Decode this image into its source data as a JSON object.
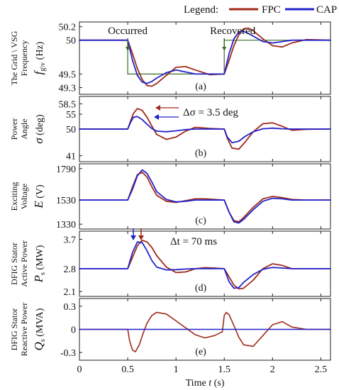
{
  "legend": {
    "title": "Legend:",
    "items": [
      {
        "name": "FPC",
        "color": "#a02a1a"
      },
      {
        "name": "CAP",
        "color": "#2222cc"
      }
    ]
  },
  "annotations": {
    "occurred": "Occurred",
    "recovered": "Recovered",
    "delta_sigma": "Δσ = 3.5 deg",
    "delta_t": "Δt = 70 ms"
  },
  "xaxis": {
    "label_prefix": "Time ",
    "label_sym": "t",
    "label_unit": " (s)",
    "ticks": [
      "0",
      "0.5",
      "1",
      "1.5",
      "2",
      "2.5"
    ]
  },
  "chart_data": [
    {
      "type": "line",
      "panel": "(a)",
      "ylabel_lines": [
        "The Grid \\ VSG",
        "Frequency"
      ],
      "ylabel_symbol": "f",
      "ylabel_sub": "g\\v",
      "ylabel_unit": "(Hz)",
      "ylim": [
        49.2,
        50.27
      ],
      "yticks": [
        "50.2",
        "50",
        "49.5",
        "49.3"
      ],
      "ytick_values": [
        50.2,
        50,
        49.5,
        49.3
      ],
      "reference": {
        "name": "Grid",
        "color": "#3a6a28",
        "x": [
          0,
          0.5,
          0.5,
          1.5,
          1.5,
          2.6
        ],
        "y": [
          50,
          50,
          49.5,
          49.5,
          50,
          50
        ]
      },
      "series": [
        {
          "name": "FPC",
          "x": [
            0,
            0.5,
            0.55,
            0.6,
            0.65,
            0.7,
            0.75,
            0.8,
            0.9,
            1.0,
            1.1,
            1.2,
            1.35,
            1.5,
            1.55,
            1.6,
            1.65,
            1.7,
            1.75,
            1.8,
            1.9,
            2.0,
            2.1,
            2.2,
            2.35,
            2.6
          ],
          "y": [
            50,
            50,
            49.8,
            49.58,
            49.42,
            49.33,
            49.32,
            49.36,
            49.48,
            49.6,
            49.61,
            49.56,
            49.49,
            49.5,
            49.7,
            49.92,
            50.08,
            50.17,
            50.18,
            50.14,
            50.02,
            49.92,
            49.9,
            49.96,
            50.01,
            50
          ]
        },
        {
          "name": "CAP",
          "x": [
            0,
            0.5,
            0.55,
            0.6,
            0.65,
            0.7,
            0.75,
            0.8,
            0.9,
            1.0,
            1.1,
            1.2,
            1.35,
            1.5,
            1.55,
            1.6,
            1.65,
            1.7,
            1.75,
            1.8,
            1.9,
            2.0,
            2.1,
            2.2,
            2.35,
            2.6
          ],
          "y": [
            50,
            50,
            49.7,
            49.48,
            49.38,
            49.36,
            49.39,
            49.44,
            49.52,
            49.56,
            49.53,
            49.5,
            49.5,
            49.5,
            49.8,
            50.02,
            50.12,
            50.13,
            50.1,
            50.06,
            49.98,
            49.96,
            49.98,
            50,
            50,
            50
          ]
        }
      ]
    },
    {
      "type": "line",
      "panel": "(b)",
      "ylabel_lines": [
        "Power",
        "Angle"
      ],
      "ylabel_symbol": "σ",
      "ylabel_sub": "",
      "ylabel_unit": "(deg)",
      "ylim": [
        39,
        61
      ],
      "yticks": [
        "58.5",
        "55",
        "50",
        "41"
      ],
      "ytick_values": [
        58.5,
        55,
        50,
        41
      ],
      "series": [
        {
          "name": "FPC",
          "x": [
            0,
            0.5,
            0.53,
            0.56,
            0.6,
            0.65,
            0.7,
            0.75,
            0.8,
            0.9,
            1.0,
            1.1,
            1.2,
            1.35,
            1.5,
            1.53,
            1.58,
            1.65,
            1.72,
            1.8,
            1.9,
            2.0,
            2.1,
            2.2,
            2.35,
            2.6
          ],
          "y": [
            50,
            50,
            52.8,
            55.3,
            56.9,
            56.3,
            54,
            51,
            48.2,
            46.5,
            47.3,
            49.3,
            50.6,
            50.2,
            50,
            47,
            43.6,
            43.2,
            45.8,
            49.1,
            51.8,
            52.1,
            50.9,
            49.6,
            49.9,
            50
          ]
        },
        {
          "name": "CAP",
          "x": [
            0,
            0.5,
            0.53,
            0.56,
            0.6,
            0.65,
            0.7,
            0.75,
            0.8,
            0.9,
            1.0,
            1.1,
            1.2,
            1.35,
            1.5,
            1.53,
            1.58,
            1.65,
            1.72,
            1.8,
            1.9,
            2.0,
            2.1,
            2.2,
            2.35,
            2.6
          ],
          "y": [
            50,
            50,
            52.3,
            54,
            54.2,
            53.2,
            51.6,
            50.2,
            49.3,
            49.1,
            49.4,
            49.8,
            50,
            50,
            50,
            47.4,
            45.4,
            45.9,
            47.6,
            49.1,
            50.1,
            50.3,
            50.1,
            50,
            50,
            50
          ]
        }
      ]
    },
    {
      "type": "line",
      "panel": "(c)",
      "ylabel_lines": [
        "Exciting",
        "Voltage"
      ],
      "ylabel_symbol": "E",
      "ylabel_sub": "",
      "ylabel_unit": "(V)",
      "ylim": [
        1290,
        1830
      ],
      "yticks": [
        "1790",
        "1530",
        "1330"
      ],
      "ytick_values": [
        1790,
        1530,
        1330
      ],
      "series": [
        {
          "name": "FPC",
          "x": [
            0,
            0.5,
            0.55,
            0.6,
            0.65,
            0.7,
            0.75,
            0.8,
            0.9,
            1.0,
            1.1,
            1.2,
            1.3,
            1.4,
            1.5,
            1.55,
            1.6,
            1.65,
            1.7,
            1.8,
            1.9,
            2.0,
            2.1,
            2.2,
            2.35,
            2.6
          ],
          "y": [
            1530,
            1530,
            1640,
            1740,
            1760,
            1720,
            1640,
            1570,
            1520,
            1510,
            1525,
            1540,
            1540,
            1535,
            1530,
            1430,
            1360,
            1350,
            1385,
            1470,
            1540,
            1560,
            1550,
            1535,
            1530,
            1530
          ]
        },
        {
          "name": "CAP",
          "x": [
            0,
            0.5,
            0.55,
            0.6,
            0.65,
            0.7,
            0.75,
            0.8,
            0.9,
            1.0,
            1.1,
            1.2,
            1.3,
            1.4,
            1.5,
            1.55,
            1.6,
            1.65,
            1.7,
            1.8,
            1.9,
            2.0,
            2.1,
            2.2,
            2.35,
            2.6
          ],
          "y": [
            1530,
            1530,
            1620,
            1730,
            1780,
            1750,
            1680,
            1600,
            1535,
            1515,
            1520,
            1530,
            1530,
            1530,
            1530,
            1430,
            1350,
            1340,
            1370,
            1450,
            1520,
            1545,
            1540,
            1530,
            1530,
            1530
          ]
        }
      ]
    },
    {
      "type": "line",
      "panel": "(d)",
      "ylabel_lines": [
        "DFIG Stator",
        "Active Power"
      ],
      "ylabel_symbol": "P",
      "ylabel_sub": "s",
      "ylabel_unit": "(MW)",
      "ylim": [
        1.95,
        3.95
      ],
      "yticks": [
        "3.7",
        "2.8",
        "2.1"
      ],
      "ytick_values": [
        3.7,
        2.8,
        2.1
      ],
      "series": [
        {
          "name": "FPC",
          "x": [
            0,
            0.5,
            0.55,
            0.6,
            0.65,
            0.7,
            0.75,
            0.8,
            0.9,
            1.0,
            1.1,
            1.2,
            1.3,
            1.4,
            1.5,
            1.55,
            1.6,
            1.65,
            1.7,
            1.8,
            1.9,
            2.0,
            2.1,
            2.2,
            2.35,
            2.6
          ],
          "y": [
            2.8,
            2.8,
            3.15,
            3.5,
            3.67,
            3.62,
            3.45,
            3.2,
            2.85,
            2.68,
            2.7,
            2.8,
            2.83,
            2.82,
            2.8,
            2.55,
            2.3,
            2.18,
            2.2,
            2.45,
            2.8,
            2.95,
            2.9,
            2.8,
            2.8,
            2.8
          ]
        },
        {
          "name": "CAP",
          "x": [
            0,
            0.5,
            0.55,
            0.6,
            0.65,
            0.7,
            0.75,
            0.8,
            0.9,
            1.0,
            1.1,
            1.2,
            1.3,
            1.4,
            1.5,
            1.55,
            1.6,
            1.65,
            1.7,
            1.8,
            1.9,
            2.0,
            2.1,
            2.2,
            2.35,
            2.6
          ],
          "y": [
            2.8,
            2.8,
            3.3,
            3.62,
            3.6,
            3.35,
            3.05,
            2.85,
            2.76,
            2.77,
            2.79,
            2.8,
            2.8,
            2.8,
            2.8,
            2.4,
            2.2,
            2.22,
            2.38,
            2.62,
            2.78,
            2.84,
            2.82,
            2.8,
            2.8,
            2.8
          ]
        }
      ]
    },
    {
      "type": "line",
      "panel": "(e)",
      "ylabel_lines": [
        "DFIG Stator",
        "Reactive Power"
      ],
      "ylabel_symbol": "Q",
      "ylabel_sub": "s",
      "ylabel_unit": "(MVA)",
      "ylim": [
        -0.4,
        0.4
      ],
      "yticks": [
        "0.3",
        "0",
        "-0.3"
      ],
      "ytick_values": [
        0.3,
        0,
        -0.3
      ],
      "series": [
        {
          "name": "FPC",
          "x": [
            0,
            0.5,
            0.52,
            0.55,
            0.58,
            0.62,
            0.66,
            0.7,
            0.75,
            0.8,
            0.9,
            1.0,
            1.1,
            1.2,
            1.3,
            1.4,
            1.48,
            1.5,
            1.52,
            1.55,
            1.6,
            1.65,
            1.7,
            1.8,
            1.9,
            2.0,
            2.1,
            2.2,
            2.35,
            2.6
          ],
          "y": [
            0,
            0,
            -0.15,
            -0.27,
            -0.29,
            -0.2,
            -0.05,
            0.08,
            0.18,
            0.22,
            0.2,
            0.11,
            0.02,
            -0.07,
            -0.11,
            -0.08,
            -0.03,
            0.18,
            0.22,
            0.19,
            0.05,
            -0.1,
            -0.2,
            -0.22,
            -0.08,
            0.06,
            0.1,
            0.03,
            0,
            0
          ]
        },
        {
          "name": "CAP",
          "x": [
            0,
            2.6
          ],
          "y": [
            0,
            0
          ]
        }
      ]
    }
  ]
}
